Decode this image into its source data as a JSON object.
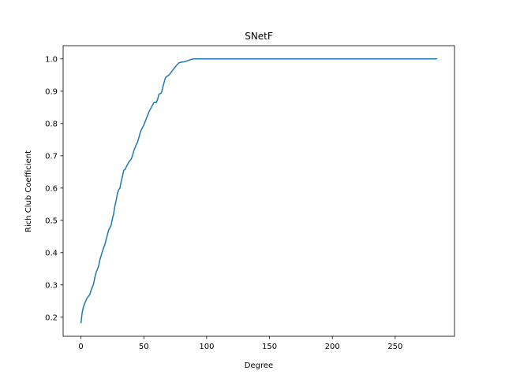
{
  "chart_data": {
    "type": "line",
    "title": "SNetF",
    "xlabel": "Degree",
    "ylabel": "Rich Club Coefficient",
    "xlim": [
      -14.2,
      297.2
    ],
    "ylim": [
      0.141,
      1.041
    ],
    "xticks": [
      0,
      50,
      100,
      150,
      200,
      250
    ],
    "yticks": [
      0.2,
      0.3,
      0.4,
      0.5,
      0.6,
      0.7,
      0.8,
      0.9,
      1.0
    ],
    "xtick_labels": [
      "0",
      "50",
      "100",
      "150",
      "200",
      "250"
    ],
    "ytick_labels": [
      "0.2",
      "0.3",
      "0.4",
      "0.5",
      "0.6",
      "0.7",
      "0.8",
      "0.9",
      "1.0"
    ],
    "grid": false,
    "series": [
      {
        "color": "#1f77b4",
        "x": [
          0,
          1,
          2,
          3,
          4,
          5,
          6,
          7,
          8,
          9,
          10,
          11,
          12,
          13,
          14,
          15,
          16,
          17,
          18,
          19,
          20,
          21,
          22,
          23,
          24,
          25,
          26,
          27,
          28,
          29,
          30,
          31,
          32,
          33,
          34,
          35,
          36,
          38,
          40,
          41,
          42,
          44,
          45,
          46,
          47,
          48,
          50,
          51,
          52,
          54,
          56,
          58,
          60,
          61,
          62,
          64,
          65,
          66,
          67,
          68,
          70,
          72,
          74,
          76,
          78,
          80,
          82,
          84,
          86,
          88,
          90,
          92,
          95,
          100,
          110,
          150,
          200,
          250,
          283
        ],
        "y": [
          0.183,
          0.215,
          0.232,
          0.243,
          0.252,
          0.26,
          0.265,
          0.27,
          0.283,
          0.293,
          0.303,
          0.323,
          0.338,
          0.348,
          0.358,
          0.377,
          0.39,
          0.403,
          0.415,
          0.425,
          0.44,
          0.455,
          0.47,
          0.477,
          0.485,
          0.505,
          0.52,
          0.545,
          0.562,
          0.583,
          0.595,
          0.6,
          0.62,
          0.636,
          0.655,
          0.657,
          0.665,
          0.68,
          0.69,
          0.7,
          0.715,
          0.735,
          0.742,
          0.755,
          0.77,
          0.78,
          0.795,
          0.805,
          0.815,
          0.835,
          0.85,
          0.865,
          0.865,
          0.875,
          0.89,
          0.895,
          0.91,
          0.925,
          0.94,
          0.945,
          0.95,
          0.96,
          0.97,
          0.98,
          0.988,
          0.99,
          0.991,
          0.993,
          0.996,
          0.999,
          1.0,
          1.0,
          1.0,
          1.0,
          1.0,
          1.0,
          1.0,
          1.0,
          1.0
        ]
      }
    ]
  }
}
